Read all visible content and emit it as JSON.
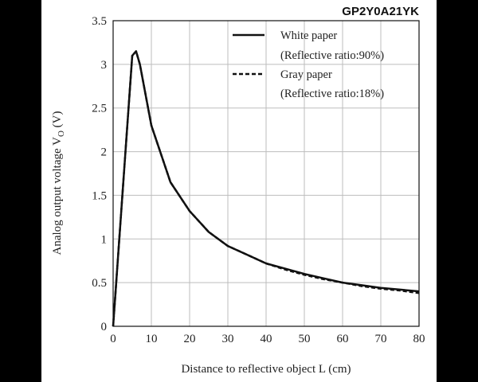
{
  "colors": {
    "background": "#000000",
    "panel": "#ffffff",
    "grid": "#bdbdbd",
    "series": "#111111"
  },
  "chart_data": {
    "type": "line",
    "title": "GP2Y0A21YK",
    "xlabel": "Distance to reflective object L (cm)",
    "ylabel_main": "Analog output voltage V",
    "ylabel_sub": "O",
    "ylabel_unit": " (V)",
    "xlim": [
      0,
      80
    ],
    "ylim": [
      0,
      3.5
    ],
    "x_ticks": [
      0,
      10,
      20,
      30,
      40,
      50,
      60,
      70,
      80
    ],
    "x_tick_labels": [
      "0",
      "10",
      "20",
      "30",
      "40",
      "50",
      "60",
      "70",
      "80"
    ],
    "y_ticks": [
      0,
      0.5,
      1,
      1.5,
      2,
      2.5,
      3,
      3.5
    ],
    "y_tick_labels": [
      "0",
      "0.5",
      "1",
      "1.5",
      "2",
      "2.5",
      "3",
      "3.5"
    ],
    "grid": true,
    "legend_position": "top-right",
    "series": [
      {
        "name_line1": "White paper",
        "name_line2": "(Reflective ratio:90%)",
        "style": "solid",
        "x": [
          0,
          5,
          6,
          7,
          10,
          15,
          20,
          25,
          30,
          35,
          40,
          45,
          50,
          55,
          60,
          65,
          70,
          75,
          80
        ],
        "y": [
          0,
          3.1,
          3.15,
          3.0,
          2.3,
          1.65,
          1.32,
          1.08,
          0.92,
          0.82,
          0.72,
          0.66,
          0.6,
          0.55,
          0.5,
          0.47,
          0.44,
          0.42,
          0.4
        ]
      },
      {
        "name_line1": "Gray paper",
        "name_line2": "(Reflective ratio:18%)",
        "style": "dashed",
        "x": [
          0,
          5,
          6,
          7,
          10,
          15,
          20,
          25,
          30,
          35,
          40,
          45,
          50,
          55,
          60,
          65,
          70,
          75,
          80
        ],
        "y": [
          0,
          3.1,
          3.15,
          3.0,
          2.3,
          1.65,
          1.32,
          1.08,
          0.92,
          0.82,
          0.72,
          0.65,
          0.59,
          0.54,
          0.5,
          0.46,
          0.43,
          0.41,
          0.38
        ]
      }
    ]
  }
}
